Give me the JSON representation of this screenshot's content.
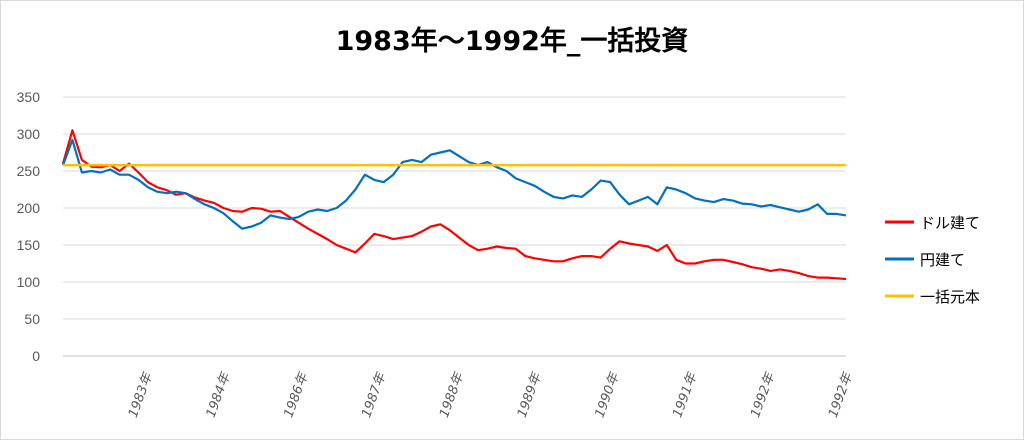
{
  "chart_data": {
    "type": "line",
    "title": "1983年～1992年_一括投資",
    "xlabel": "",
    "ylabel": "",
    "ylim": [
      0,
      350
    ],
    "y_ticks": [
      0,
      50,
      100,
      150,
      200,
      250,
      300,
      350
    ],
    "x_tick_labels": [
      "1983年",
      "1984年",
      "1986年",
      "1987年",
      "1988年",
      "1989年",
      "1990年",
      "1991年",
      "1992年",
      "1992年"
    ],
    "grid": true,
    "legend_position": "right",
    "series": [
      {
        "name": "ドル建て",
        "color": "#ff0000",
        "values": [
          260,
          305,
          265,
          256,
          255,
          258,
          250,
          260,
          248,
          235,
          228,
          224,
          218,
          220,
          214,
          210,
          207,
          200,
          196,
          195,
          200,
          199,
          195,
          196,
          188,
          180,
          172,
          165,
          158,
          150,
          145,
          140,
          152,
          165,
          162,
          158,
          160,
          162,
          168,
          175,
          178,
          170,
          160,
          150,
          143,
          145,
          148,
          146,
          145,
          135,
          132,
          130,
          128,
          128,
          132,
          135,
          135,
          133,
          145,
          155,
          152,
          150,
          148,
          142,
          150,
          130,
          125,
          125,
          128,
          130,
          130,
          127,
          124,
          120,
          118,
          115,
          117,
          115,
          112,
          108,
          106,
          106,
          105,
          104
        ]
      },
      {
        "name": "円建て",
        "color": "#0070c0",
        "values": [
          258,
          292,
          248,
          250,
          248,
          252,
          245,
          245,
          238,
          228,
          222,
          220,
          222,
          220,
          212,
          205,
          200,
          193,
          182,
          172,
          175,
          180,
          190,
          187,
          185,
          188,
          195,
          198,
          196,
          200,
          210,
          225,
          245,
          238,
          235,
          245,
          262,
          265,
          262,
          272,
          275,
          278,
          270,
          262,
          258,
          262,
          255,
          250,
          240,
          235,
          230,
          222,
          215,
          213,
          217,
          215,
          225,
          237,
          235,
          218,
          205,
          210,
          215,
          205,
          228,
          225,
          220,
          213,
          210,
          208,
          212,
          210,
          206,
          205,
          202,
          204,
          201,
          198,
          195,
          198,
          205,
          192,
          192,
          190
        ]
      },
      {
        "name": "一括元本",
        "color": "#ffc000",
        "values": [
          258,
          258
        ]
      }
    ]
  }
}
